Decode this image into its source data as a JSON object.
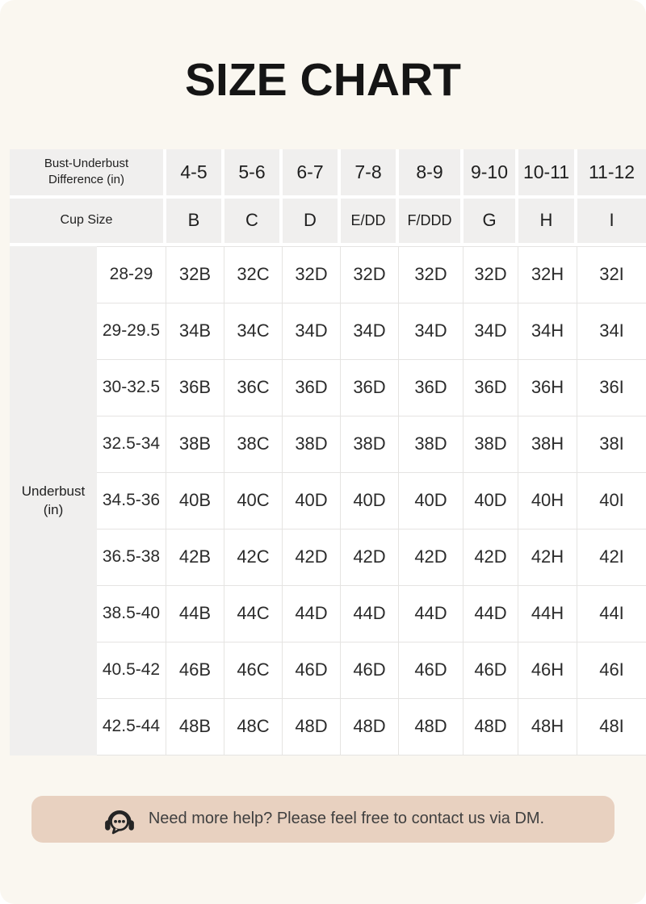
{
  "title": "SIZE CHART",
  "chart_data": {
    "type": "table",
    "title": "SIZE CHART",
    "corner_header": "Bust-Underbust Difference (in)",
    "cup_size_label": "Cup Size",
    "underbust_label": "Underbust (in)",
    "diff_columns": [
      "4-5",
      "5-6",
      "6-7",
      "7-8",
      "8-9",
      "9-10",
      "10-11",
      "11-12"
    ],
    "cup_columns": [
      "B",
      "C",
      "D",
      "E/DD",
      "F/DDD",
      "G",
      "H",
      "I"
    ],
    "rows": [
      {
        "underbust": "28-29",
        "sizes": [
          "32B",
          "32C",
          "32D",
          "32D",
          "32D",
          "32D",
          "32H",
          "32I"
        ]
      },
      {
        "underbust": "29-29.5",
        "sizes": [
          "34B",
          "34C",
          "34D",
          "34D",
          "34D",
          "34D",
          "34H",
          "34I"
        ]
      },
      {
        "underbust": "30-32.5",
        "sizes": [
          "36B",
          "36C",
          "36D",
          "36D",
          "36D",
          "36D",
          "36H",
          "36I"
        ]
      },
      {
        "underbust": "32.5-34",
        "sizes": [
          "38B",
          "38C",
          "38D",
          "38D",
          "38D",
          "38D",
          "38H",
          "38I"
        ]
      },
      {
        "underbust": "34.5-36",
        "sizes": [
          "40B",
          "40C",
          "40D",
          "40D",
          "40D",
          "40D",
          "40H",
          "40I"
        ]
      },
      {
        "underbust": "36.5-38",
        "sizes": [
          "42B",
          "42C",
          "42D",
          "42D",
          "42D",
          "42D",
          "42H",
          "42I"
        ]
      },
      {
        "underbust": "38.5-40",
        "sizes": [
          "44B",
          "44C",
          "44D",
          "44D",
          "44D",
          "44D",
          "44H",
          "44I"
        ]
      },
      {
        "underbust": "40.5-42",
        "sizes": [
          "46B",
          "46C",
          "46D",
          "46D",
          "46D",
          "46D",
          "46H",
          "46I"
        ]
      },
      {
        "underbust": "42.5-44",
        "sizes": [
          "48B",
          "48C",
          "48D",
          "48D",
          "48D",
          "48D",
          "48H",
          "48I"
        ]
      }
    ]
  },
  "footer": {
    "icon": "headset-chat-icon",
    "message": "Need more help? Please feel free to contact us via DM."
  },
  "colors": {
    "page_bg": "#faf7f0",
    "header_bg": "#f0efee",
    "grid_line": "#e5e4e2",
    "text": "#1f1f1f",
    "banner_bg": "#e8d1c0",
    "icon": "#242424"
  }
}
